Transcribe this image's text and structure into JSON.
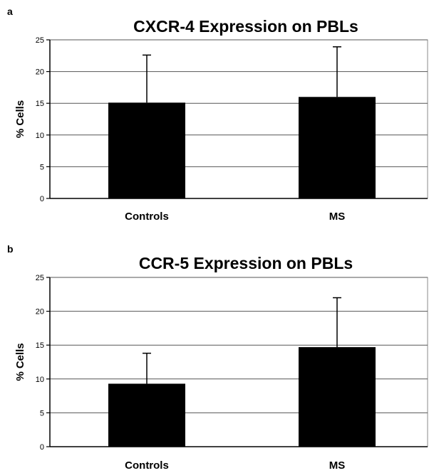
{
  "chart_data": [
    {
      "type": "bar",
      "panel_label": "a",
      "title": "CXCR-4 Expression on PBLs",
      "xlabel": "",
      "ylabel": "% Cells",
      "categories": [
        "Controls",
        "MS"
      ],
      "values": [
        15.1,
        16.0
      ],
      "error_plus": [
        7.5,
        7.9
      ],
      "ylim": [
        0,
        25
      ],
      "yticks": [
        0,
        5,
        10,
        15,
        20,
        25
      ],
      "grid": true,
      "bar_color": "#000000"
    },
    {
      "type": "bar",
      "panel_label": "b",
      "title": "CCR-5 Expression on PBLs",
      "xlabel": "",
      "ylabel": "% Cells",
      "categories": [
        "Controls",
        "MS"
      ],
      "values": [
        9.3,
        14.7
      ],
      "error_plus": [
        4.5,
        7.3
      ],
      "ylim": [
        0,
        25
      ],
      "yticks": [
        0,
        5,
        10,
        15,
        20,
        25
      ],
      "grid": true,
      "bar_color": "#000000"
    }
  ]
}
